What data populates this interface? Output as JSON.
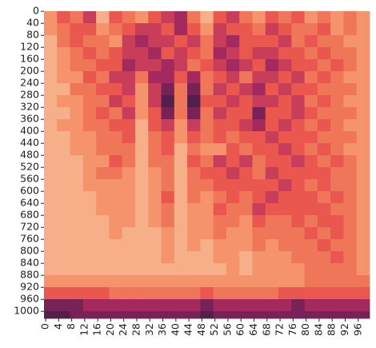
{
  "chart_data": {
    "type": "heatmap",
    "xbins": [
      0,
      4,
      8,
      12,
      16,
      20,
      24,
      28,
      32,
      36,
      40,
      44,
      48,
      52,
      56,
      60,
      64,
      68,
      72,
      76,
      80,
      84,
      88,
      92,
      96,
      100
    ],
    "ybins": [
      0,
      40,
      80,
      120,
      160,
      200,
      240,
      280,
      320,
      360,
      400,
      440,
      480,
      520,
      560,
      600,
      640,
      680,
      720,
      760,
      800,
      840,
      880,
      920,
      960,
      1000,
      1024
    ],
    "xlim": [
      0,
      100
    ],
    "ylim": [
      0,
      1024
    ],
    "xticks": [
      0,
      4,
      8,
      12,
      16,
      20,
      24,
      28,
      32,
      36,
      40,
      44,
      48,
      52,
      56,
      60,
      64,
      68,
      72,
      76,
      80,
      84,
      88,
      92,
      96
    ],
    "yticks": [
      0,
      40,
      80,
      120,
      160,
      200,
      240,
      280,
      320,
      360,
      400,
      440,
      480,
      520,
      560,
      600,
      640,
      680,
      720,
      760,
      800,
      840,
      880,
      920,
      960,
      1000
    ],
    "zlim": [
      0,
      1
    ],
    "colormap": [
      "#2e1e3b",
      "#6b1f55",
      "#b22c62",
      "#e9574e",
      "#f48a62",
      "#f6b892",
      "#f9d6bc"
    ],
    "z": [
      [
        0.7,
        0.5,
        0.6,
        0.4,
        0.8,
        0.5,
        0.6,
        0.7,
        0.5,
        0.4,
        0.3,
        0.6,
        0.8,
        0.5,
        0.4,
        0.6,
        0.7,
        0.5,
        0.6,
        0.5,
        0.7,
        0.6,
        0.7,
        0.6,
        0.7
      ],
      [
        0.7,
        0.6,
        0.5,
        0.5,
        0.7,
        0.6,
        0.5,
        0.4,
        0.4,
        0.5,
        0.3,
        0.5,
        0.7,
        0.4,
        0.5,
        0.5,
        0.6,
        0.4,
        0.5,
        0.6,
        0.6,
        0.5,
        0.7,
        0.6,
        0.7
      ],
      [
        0.8,
        0.6,
        0.5,
        0.6,
        0.6,
        0.7,
        0.4,
        0.3,
        0.4,
        0.4,
        0.5,
        0.4,
        0.6,
        0.4,
        0.3,
        0.5,
        0.5,
        0.5,
        0.4,
        0.6,
        0.5,
        0.6,
        0.6,
        0.7,
        0.7
      ],
      [
        0.8,
        0.7,
        0.6,
        0.5,
        0.6,
        0.5,
        0.4,
        0.4,
        0.3,
        0.5,
        0.4,
        0.5,
        0.6,
        0.3,
        0.4,
        0.5,
        0.4,
        0.4,
        0.5,
        0.5,
        0.6,
        0.5,
        0.6,
        0.6,
        0.7
      ],
      [
        0.8,
        0.7,
        0.6,
        0.6,
        0.5,
        0.5,
        0.3,
        0.4,
        0.4,
        0.3,
        0.4,
        0.6,
        0.5,
        0.4,
        0.3,
        0.4,
        0.5,
        0.3,
        0.4,
        0.5,
        0.5,
        0.6,
        0.5,
        0.6,
        0.7
      ],
      [
        0.8,
        0.7,
        0.7,
        0.5,
        0.6,
        0.4,
        0.4,
        0.6,
        0.3,
        0.3,
        0.5,
        0.3,
        0.6,
        0.5,
        0.4,
        0.6,
        0.4,
        0.4,
        0.5,
        0.4,
        0.6,
        0.5,
        0.6,
        0.7,
        0.7
      ],
      [
        0.8,
        0.8,
        0.6,
        0.6,
        0.5,
        0.5,
        0.4,
        0.7,
        0.4,
        0.2,
        0.6,
        0.2,
        0.6,
        0.4,
        0.5,
        0.4,
        0.3,
        0.5,
        0.4,
        0.5,
        0.5,
        0.6,
        0.6,
        0.6,
        0.7
      ],
      [
        0.8,
        0.7,
        0.7,
        0.6,
        0.6,
        0.4,
        0.5,
        0.7,
        0.4,
        0.1,
        0.6,
        0.1,
        0.5,
        0.5,
        0.4,
        0.5,
        0.4,
        0.4,
        0.5,
        0.4,
        0.6,
        0.5,
        0.6,
        0.7,
        0.7
      ],
      [
        0.8,
        0.8,
        0.7,
        0.6,
        0.5,
        0.6,
        0.4,
        0.7,
        0.5,
        0.2,
        0.6,
        0.2,
        0.6,
        0.4,
        0.5,
        0.5,
        0.2,
        0.5,
        0.5,
        0.4,
        0.5,
        0.6,
        0.6,
        0.6,
        0.7
      ],
      [
        0.8,
        0.7,
        0.7,
        0.6,
        0.6,
        0.5,
        0.5,
        0.8,
        0.5,
        0.4,
        0.7,
        0.4,
        0.6,
        0.5,
        0.5,
        0.4,
        0.3,
        0.5,
        0.4,
        0.5,
        0.6,
        0.5,
        0.6,
        0.7,
        0.7
      ],
      [
        0.8,
        0.8,
        0.7,
        0.7,
        0.6,
        0.6,
        0.5,
        0.8,
        0.6,
        0.5,
        0.7,
        0.5,
        0.6,
        0.5,
        0.6,
        0.5,
        0.5,
        0.4,
        0.5,
        0.5,
        0.5,
        0.6,
        0.6,
        0.6,
        0.7
      ],
      [
        0.8,
        0.8,
        0.7,
        0.7,
        0.6,
        0.6,
        0.6,
        0.8,
        0.6,
        0.5,
        0.8,
        0.6,
        0.7,
        0.7,
        0.5,
        0.6,
        0.5,
        0.5,
        0.4,
        0.5,
        0.6,
        0.5,
        0.6,
        0.7,
        0.7
      ],
      [
        0.8,
        0.8,
        0.8,
        0.7,
        0.7,
        0.5,
        0.6,
        0.8,
        0.6,
        0.6,
        0.8,
        0.5,
        0.6,
        0.4,
        0.5,
        0.4,
        0.6,
        0.5,
        0.5,
        0.4,
        0.5,
        0.6,
        0.5,
        0.6,
        0.7
      ],
      [
        0.8,
        0.8,
        0.8,
        0.7,
        0.6,
        0.6,
        0.7,
        0.8,
        0.7,
        0.6,
        0.8,
        0.6,
        0.5,
        0.5,
        0.4,
        0.5,
        0.6,
        0.4,
        0.5,
        0.5,
        0.5,
        0.5,
        0.6,
        0.6,
        0.7
      ],
      [
        0.8,
        0.8,
        0.8,
        0.7,
        0.7,
        0.7,
        0.7,
        0.8,
        0.7,
        0.6,
        0.8,
        0.6,
        0.6,
        0.5,
        0.5,
        0.5,
        0.5,
        0.5,
        0.4,
        0.5,
        0.6,
        0.5,
        0.6,
        0.6,
        0.7
      ],
      [
        0.8,
        0.8,
        0.8,
        0.8,
        0.7,
        0.7,
        0.7,
        0.8,
        0.7,
        0.5,
        0.8,
        0.6,
        0.7,
        0.6,
        0.5,
        0.6,
        0.5,
        0.4,
        0.5,
        0.5,
        0.5,
        0.6,
        0.5,
        0.6,
        0.7
      ],
      [
        0.8,
        0.8,
        0.8,
        0.8,
        0.7,
        0.7,
        0.7,
        0.8,
        0.7,
        0.6,
        0.8,
        0.7,
        0.7,
        0.5,
        0.6,
        0.6,
        0.4,
        0.5,
        0.5,
        0.5,
        0.5,
        0.5,
        0.6,
        0.6,
        0.7
      ],
      [
        0.8,
        0.8,
        0.8,
        0.8,
        0.8,
        0.7,
        0.7,
        0.8,
        0.7,
        0.6,
        0.8,
        0.7,
        0.7,
        0.6,
        0.6,
        0.7,
        0.5,
        0.6,
        0.6,
        0.5,
        0.6,
        0.5,
        0.5,
        0.6,
        0.7
      ],
      [
        0.8,
        0.8,
        0.8,
        0.8,
        0.8,
        0.7,
        0.8,
        0.8,
        0.8,
        0.7,
        0.8,
        0.7,
        0.7,
        0.6,
        0.7,
        0.7,
        0.6,
        0.6,
        0.6,
        0.6,
        0.5,
        0.6,
        0.5,
        0.6,
        0.7
      ],
      [
        0.8,
        0.8,
        0.8,
        0.8,
        0.8,
        0.8,
        0.8,
        0.8,
        0.8,
        0.7,
        0.8,
        0.7,
        0.8,
        0.7,
        0.7,
        0.7,
        0.6,
        0.7,
        0.6,
        0.6,
        0.6,
        0.5,
        0.6,
        0.6,
        0.7
      ],
      [
        0.8,
        0.8,
        0.8,
        0.8,
        0.8,
        0.8,
        0.8,
        0.8,
        0.8,
        0.7,
        0.8,
        0.8,
        0.8,
        0.7,
        0.7,
        0.8,
        0.7,
        0.7,
        0.7,
        0.6,
        0.6,
        0.6,
        0.5,
        0.6,
        0.7
      ],
      [
        0.8,
        0.8,
        0.8,
        0.8,
        0.8,
        0.8,
        0.8,
        0.8,
        0.8,
        0.8,
        0.8,
        0.8,
        0.8,
        0.8,
        0.7,
        0.8,
        0.7,
        0.7,
        0.7,
        0.7,
        0.6,
        0.6,
        0.6,
        0.6,
        0.7
      ],
      [
        0.7,
        0.7,
        0.7,
        0.7,
        0.7,
        0.7,
        0.7,
        0.7,
        0.7,
        0.7,
        0.7,
        0.7,
        0.7,
        0.7,
        0.7,
        0.7,
        0.7,
        0.7,
        0.7,
        0.7,
        0.6,
        0.6,
        0.6,
        0.6,
        0.6
      ],
      [
        0.5,
        0.5,
        0.5,
        0.5,
        0.5,
        0.6,
        0.6,
        0.6,
        0.6,
        0.6,
        0.6,
        0.6,
        0.5,
        0.6,
        0.6,
        0.6,
        0.6,
        0.6,
        0.5,
        0.5,
        0.5,
        0.5,
        0.5,
        0.5,
        0.5
      ],
      [
        0.2,
        0.2,
        0.2,
        0.3,
        0.3,
        0.3,
        0.3,
        0.3,
        0.3,
        0.3,
        0.3,
        0.3,
        0.2,
        0.3,
        0.3,
        0.3,
        0.3,
        0.3,
        0.3,
        0.2,
        0.3,
        0.3,
        0.3,
        0.3,
        0.3
      ],
      [
        0.1,
        0.1,
        0.2,
        0.2,
        0.2,
        0.2,
        0.2,
        0.2,
        0.2,
        0.2,
        0.2,
        0.2,
        0.1,
        0.2,
        0.2,
        0.2,
        0.2,
        0.2,
        0.2,
        0.2,
        0.2,
        0.2,
        0.2,
        0.2,
        0.2
      ]
    ]
  }
}
